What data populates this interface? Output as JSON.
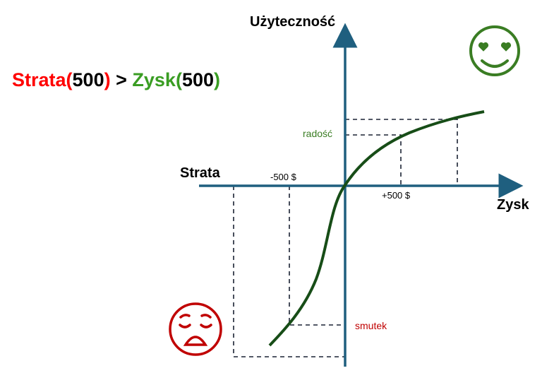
{
  "headline": {
    "loss_word": "Strata",
    "loss_open": "(",
    "loss_value": "500",
    "loss_close": ")",
    "operator": ">",
    "gain_word": "Zysk",
    "gain_open": "(",
    "gain_value": "500",
    "gain_close": ")"
  },
  "axes": {
    "y_label": "Użyteczność",
    "x_negative_label": "Strata",
    "x_positive_label": "Zysk"
  },
  "ticks": {
    "minus": "-500 $",
    "plus": "+500 $"
  },
  "annotations": {
    "joy": "radość",
    "sadness": "smutek"
  },
  "icons": {
    "happy": "heart-eyes-smiley-icon",
    "sad": "weary-face-icon"
  },
  "colors": {
    "loss": "#ff0000",
    "gain": "#3a9d23",
    "axis": "#1f5f7f",
    "curve": "#174d17",
    "happy_icon": "#3a7d23",
    "sad_icon": "#c00000"
  }
}
